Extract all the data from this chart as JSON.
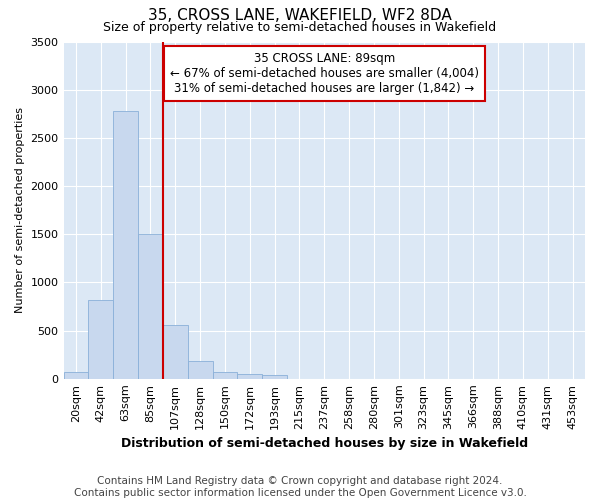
{
  "title": "35, CROSS LANE, WAKEFIELD, WF2 8DA",
  "subtitle": "Size of property relative to semi-detached houses in Wakefield",
  "xlabel": "Distribution of semi-detached houses by size in Wakefield",
  "ylabel": "Number of semi-detached properties",
  "footer_line1": "Contains HM Land Registry data © Crown copyright and database right 2024.",
  "footer_line2": "Contains public sector information licensed under the Open Government Licence v3.0.",
  "annotation_title": "35 CROSS LANE: 89sqm",
  "annotation_line1": "← 67% of semi-detached houses are smaller (4,004)",
  "annotation_line2": "31% of semi-detached houses are larger (1,842) →",
  "bar_labels": [
    "20sqm",
    "42sqm",
    "63sqm",
    "85sqm",
    "107sqm",
    "128sqm",
    "150sqm",
    "172sqm",
    "193sqm",
    "215sqm",
    "237sqm",
    "258sqm",
    "280sqm",
    "301sqm",
    "323sqm",
    "345sqm",
    "366sqm",
    "388sqm",
    "410sqm",
    "431sqm",
    "453sqm"
  ],
  "bar_values": [
    75,
    820,
    2780,
    1500,
    560,
    180,
    75,
    50,
    35,
    0,
    0,
    0,
    0,
    0,
    0,
    0,
    0,
    0,
    0,
    0,
    0
  ],
  "bar_color": "#c8d8ee",
  "bar_edge_color": "#8ab0d8",
  "vline_color": "#cc0000",
  "vline_position": 3.5,
  "ylim": [
    0,
    3500
  ],
  "yticks": [
    0,
    500,
    1000,
    1500,
    2000,
    2500,
    3000,
    3500
  ],
  "plot_bg_color": "#dce8f5",
  "grid_color": "#ffffff",
  "annotation_box_facecolor": "#ffffff",
  "annotation_box_edgecolor": "#cc0000",
  "title_fontsize": 11,
  "subtitle_fontsize": 9,
  "xlabel_fontsize": 9,
  "ylabel_fontsize": 8,
  "tick_fontsize": 8,
  "annotation_fontsize": 8.5,
  "footer_fontsize": 7.5
}
